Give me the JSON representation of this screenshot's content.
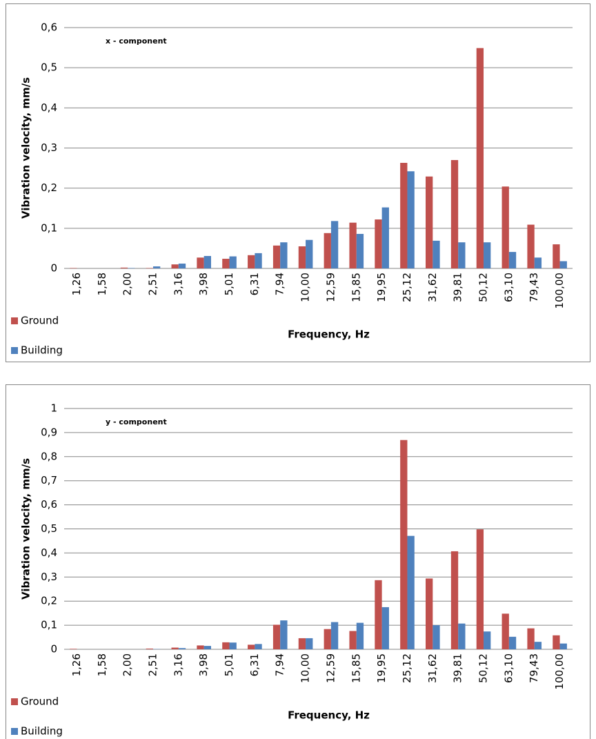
{
  "chart_data": [
    {
      "type": "bar",
      "annotation": "x - component",
      "x_label": "Frequency, Hz",
      "y_label": "Vibration velocity, mm/s",
      "categories": [
        "1,26",
        "1,58",
        "2,00",
        "2,51",
        "3,16",
        "3,98",
        "5,01",
        "6,31",
        "7,94",
        "10,00",
        "12,59",
        "15,85",
        "19,95",
        "25,12",
        "31,62",
        "39,81",
        "50,12",
        "63,10",
        "79,43",
        "100,00"
      ],
      "series": [
        {
          "name": "Ground",
          "color": "#c0504d",
          "values": [
            0.001,
            0,
            0.002,
            0.001,
            0.01,
            0.027,
            0.024,
            0.033,
            0.057,
            0.055,
            0.088,
            0.114,
            0.122,
            0.263,
            0.229,
            0.27,
            0.549,
            0.204,
            0.109,
            0.06
          ]
        },
        {
          "name": "Building",
          "color": "#4f81bd",
          "values": [
            0,
            0,
            0.001,
            0.005,
            0.012,
            0.031,
            0.03,
            0.038,
            0.065,
            0.071,
            0.118,
            0.086,
            0.152,
            0.242,
            0.069,
            0.065,
            0.065,
            0.041,
            0.027,
            0.018
          ]
        }
      ],
      "ylim": [
        0,
        0.6
      ],
      "yticks": [
        0,
        {
          "value": 0.1,
          "label": "0,1"
        },
        {
          "value": 0.2,
          "label": "0,2"
        },
        {
          "value": 0.3,
          "label": "0,3"
        },
        {
          "value": 0.4,
          "label": "0,4"
        },
        {
          "value": 0.5,
          "label": "0,5"
        },
        {
          "value": 0.6,
          "label": "0,6"
        }
      ],
      "grid": true,
      "legend": "bottom-left"
    },
    {
      "type": "bar",
      "annotation": "y - component",
      "x_label": "Frequency, Hz",
      "y_label": "Vibration velocity, mm/s",
      "categories": [
        "1,26",
        "1,58",
        "2,00",
        "2,51",
        "3,16",
        "3,98",
        "5,01",
        "6,31",
        "7,94",
        "10,00",
        "12,59",
        "15,85",
        "19,95",
        "25,12",
        "31,62",
        "39,81",
        "50,12",
        "63,10",
        "79,43",
        "100,00"
      ],
      "series": [
        {
          "name": "Ground",
          "color": "#c0504d",
          "values": [
            0.002,
            0,
            0,
            0.003,
            0.007,
            0.016,
            0.029,
            0.019,
            0.102,
            0.046,
            0.084,
            0.076,
            0.287,
            0.869,
            0.294,
            0.407,
            0.498,
            0.148,
            0.087,
            0.058
          ]
        },
        {
          "name": "Building",
          "color": "#4f81bd",
          "values": [
            0,
            0,
            0,
            0.001,
            0.005,
            0.014,
            0.028,
            0.022,
            0.12,
            0.046,
            0.113,
            0.11,
            0.175,
            0.471,
            0.1,
            0.107,
            0.074,
            0.052,
            0.031,
            0.024
          ]
        }
      ],
      "ylim": [
        0,
        1
      ],
      "yticks": [
        0,
        {
          "value": 0.1,
          "label": "0,1"
        },
        {
          "value": 0.2,
          "label": "0,2"
        },
        {
          "value": 0.3,
          "label": "0,3"
        },
        {
          "value": 0.4,
          "label": "0,4"
        },
        {
          "value": 0.5,
          "label": "0,5"
        },
        {
          "value": 0.6,
          "label": "0,6"
        },
        {
          "value": 0.7,
          "label": "0,7"
        },
        {
          "value": 0.8,
          "label": "0,8"
        },
        {
          "value": 0.9,
          "label": "0,9"
        },
        1
      ],
      "grid": true,
      "legend": "bottom-left"
    }
  ]
}
